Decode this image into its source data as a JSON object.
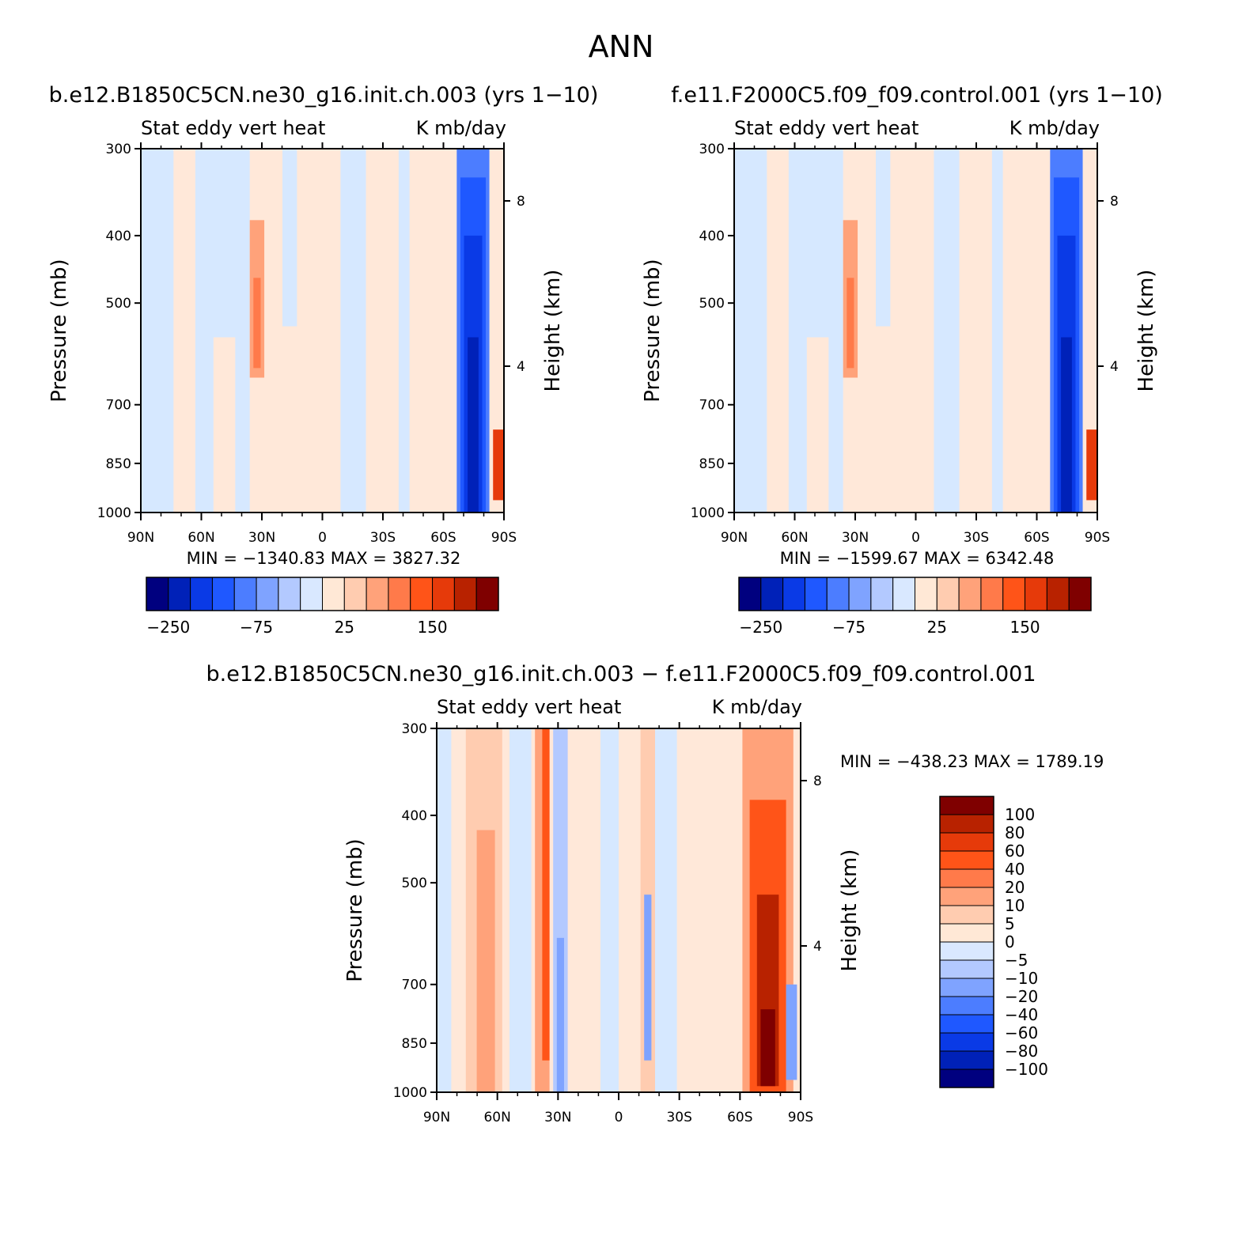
{
  "figure": {
    "season": "ANN"
  },
  "panels": [
    {
      "id": "p1",
      "case_title": "b.e12.B1850C5CN.ne30_g16.init.ch.003 (yrs 1−10)",
      "left_label": "Stat eddy vert heat",
      "right_label": "K mb/day",
      "min_max": "MIN = −1340.83   MAX = 3827.32"
    },
    {
      "id": "p2",
      "case_title": "f.e11.F2000C5.f09_f09.control.001 (yrs 1−10)",
      "left_label": "Stat eddy vert heat",
      "right_label": "K mb/day",
      "min_max": "MIN = −1599.67   MAX = 6342.48"
    },
    {
      "id": "p3",
      "case_title": "b.e12.B1850C5CN.ne30_g16.init.ch.003 − f.e11.F2000C5.f09_f09.control.001",
      "left_label": "Stat eddy vert heat",
      "right_label": "K mb/day",
      "min_max": "MIN = −438.23   MAX = 1789.19"
    }
  ],
  "axes": {
    "ylabel": "Pressure (mb)",
    "ylabel_right": "Height (km)",
    "y_ticks": [
      "300",
      "400",
      "500",
      "700",
      "850",
      "1000"
    ],
    "y_right_ticks": [
      "8",
      "4"
    ],
    "x_ticks": [
      "90N",
      "60N",
      "30N",
      "0",
      "30S",
      "60S",
      "90S"
    ]
  },
  "colorbars": {
    "top_labels": [
      "−250",
      "−75",
      "25",
      "150"
    ],
    "diff_labels": [
      "100",
      "80",
      "60",
      "40",
      "20",
      "10",
      "5",
      "0",
      "−5",
      "−10",
      "−20",
      "−40",
      "−60",
      "−80",
      "−100"
    ]
  },
  "chart_data": [
    {
      "type": "heatmap",
      "title": "b.e12.B1850C5CN.ne30_g16.init.ch.003 (yrs 1−10)",
      "variable": "Stat eddy vert heat",
      "units": "K mb/day",
      "xlabel": "",
      "ylabel": "Pressure (mb)",
      "x_ticks": [
        "90N",
        "60N",
        "30N",
        "0",
        "30S",
        "60S",
        "90S"
      ],
      "y_ticks": [
        300,
        400,
        500,
        700,
        850,
        1000
      ],
      "y_scale": "log",
      "ylim": [
        1000,
        300
      ],
      "right_axis": {
        "label": "Height (km)",
        "ticks": [
          8,
          4
        ]
      },
      "min": -1340.83,
      "max": 3827.32,
      "colorbar_labels": [
        -250,
        -75,
        25,
        150
      ]
    },
    {
      "type": "heatmap",
      "title": "f.e11.F2000C5.f09_f09.control.001 (yrs 1−10)",
      "variable": "Stat eddy vert heat",
      "units": "K mb/day",
      "xlabel": "",
      "ylabel": "Pressure (mb)",
      "x_ticks": [
        "90N",
        "60N",
        "30N",
        "0",
        "30S",
        "60S",
        "90S"
      ],
      "y_ticks": [
        300,
        400,
        500,
        700,
        850,
        1000
      ],
      "y_scale": "log",
      "ylim": [
        1000,
        300
      ],
      "right_axis": {
        "label": "Height (km)",
        "ticks": [
          8,
          4
        ]
      },
      "min": -1599.67,
      "max": 6342.48,
      "colorbar_labels": [
        -250,
        -75,
        25,
        150
      ]
    },
    {
      "type": "heatmap",
      "title": "b.e12.B1850C5CN.ne30_g16.init.ch.003 − f.e11.F2000C5.f09_f09.control.001",
      "variable": "Stat eddy vert heat",
      "units": "K mb/day",
      "xlabel": "",
      "ylabel": "Pressure (mb)",
      "x_ticks": [
        "90N",
        "60N",
        "30N",
        "0",
        "30S",
        "60S",
        "90S"
      ],
      "y_ticks": [
        300,
        400,
        500,
        700,
        850,
        1000
      ],
      "y_scale": "log",
      "ylim": [
        1000,
        300
      ],
      "right_axis": {
        "label": "Height (km)",
        "ticks": [
          8,
          4
        ]
      },
      "min": -438.23,
      "max": 1789.19,
      "colorbar_labels": [
        100,
        80,
        60,
        40,
        20,
        10,
        5,
        0,
        -5,
        -10,
        -20,
        -40,
        -60,
        -80,
        -100
      ]
    }
  ],
  "colors": {
    "palette": [
      "#00007f",
      "#0021b8",
      "#0a3ae6",
      "#1f58ff",
      "#4c7dff",
      "#7fa3ff",
      "#b3c9ff",
      "#d9e8ff",
      "#ffe8d6",
      "#ffccb0",
      "#ffa27a",
      "#ff7a4a",
      "#ff5418",
      "#e63a0a",
      "#b82200",
      "#7f0000"
    ],
    "light_blue": "#d6e8ff",
    "light_peach": "#ffe8d9",
    "frame": "#000000"
  }
}
